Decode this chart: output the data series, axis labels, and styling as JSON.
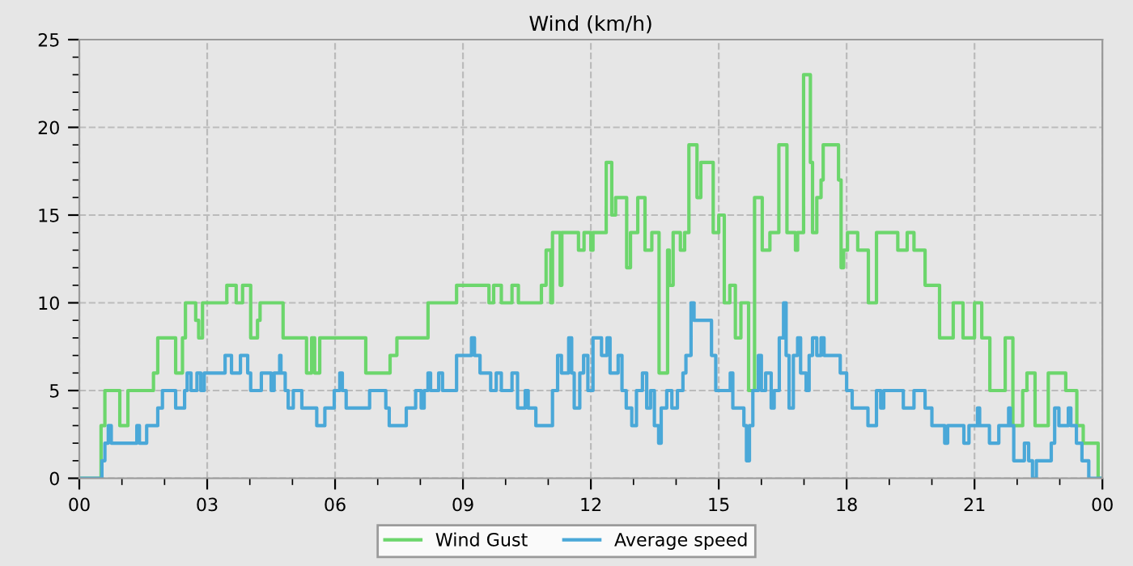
{
  "chart_data": {
    "type": "step",
    "title": "Wind (km/h)",
    "xlim": [
      0,
      24
    ],
    "xticks": [
      {
        "value": 0,
        "label": "00"
      },
      {
        "value": 1,
        "label": null
      },
      {
        "value": 2,
        "label": null
      },
      {
        "value": 3,
        "label": "03"
      },
      {
        "value": 4,
        "label": null
      },
      {
        "value": 5,
        "label": null
      },
      {
        "value": 6,
        "label": "06"
      },
      {
        "value": 7,
        "label": null
      },
      {
        "value": 8,
        "label": null
      },
      {
        "value": 9,
        "label": "09"
      },
      {
        "value": 10,
        "label": null
      },
      {
        "value": 11,
        "label": null
      },
      {
        "value": 12,
        "label": "12"
      },
      {
        "value": 13,
        "label": null
      },
      {
        "value": 14,
        "label": null
      },
      {
        "value": 15,
        "label": "15"
      },
      {
        "value": 16,
        "label": null
      },
      {
        "value": 17,
        "label": null
      },
      {
        "value": 18,
        "label": "18"
      },
      {
        "value": 19,
        "label": null
      },
      {
        "value": 20,
        "label": null
      },
      {
        "value": 21,
        "label": "21"
      },
      {
        "value": 22,
        "label": null
      },
      {
        "value": 23,
        "label": null
      },
      {
        "value": 24,
        "label": "00"
      }
    ],
    "ylim": [
      0,
      25
    ],
    "yticks": [
      0,
      {
        "value": 1,
        "label": null
      },
      {
        "value": 2,
        "label": null
      },
      {
        "value": 3,
        "label": null
      },
      {
        "value": 4,
        "label": null
      },
      5,
      {
        "value": 6,
        "label": null
      },
      {
        "value": 7,
        "label": null
      },
      {
        "value": 8,
        "label": null
      },
      {
        "value": 9,
        "label": null
      },
      10,
      {
        "value": 11,
        "label": null
      },
      {
        "value": 12,
        "label": null
      },
      {
        "value": 13,
        "label": null
      },
      {
        "value": 14,
        "label": null
      },
      15,
      {
        "value": 16,
        "label": null
      },
      {
        "value": 17,
        "label": null
      },
      {
        "value": 18,
        "label": null
      },
      {
        "value": 19,
        "label": null
      },
      20,
      {
        "value": 21,
        "label": null
      },
      {
        "value": 22,
        "label": null
      },
      {
        "value": 23,
        "label": null
      },
      {
        "value": 24,
        "label": null
      },
      25
    ],
    "grid": true,
    "legend": "bottom",
    "line_style": "solid",
    "marker": "none",
    "series": [
      {
        "name": "Wind Gust",
        "color": "#6cd66c",
        "x": [
          0,
          0.51,
          0.6,
          0.95,
          1.14,
          1.74,
          1.84,
          2.26,
          2.42,
          2.49,
          2.73,
          2.8,
          2.89,
          3.46,
          3.68,
          3.83,
          4.02,
          4.18,
          4.24,
          4.78,
          5.33,
          5.45,
          5.52,
          5.64,
          6.72,
          7.29,
          7.45,
          8.18,
          8.85,
          9.61,
          9.72,
          9.9,
          10.15,
          10.3,
          10.84,
          10.95,
          11.06,
          11.1,
          11.28,
          11.32,
          11.71,
          11.84,
          12.0,
          12.05,
          12.36,
          12.49,
          12.58,
          12.84,
          12.93,
          13.1,
          13.27,
          13.43,
          13.6,
          13.8,
          13.84,
          13.93,
          14.1,
          14.2,
          14.3,
          14.49,
          14.58,
          14.87,
          15.0,
          15.13,
          15.26,
          15.39,
          15.52,
          15.7,
          15.84,
          16.02,
          16.2,
          16.41,
          16.6,
          16.8,
          16.85,
          16.99,
          17.15,
          17.2,
          17.3,
          17.4,
          17.45,
          17.81,
          17.87,
          17.93,
          18.02,
          18.26,
          18.51,
          18.7,
          19.2,
          19.42,
          19.58,
          19.84,
          20.18,
          20.5,
          20.73,
          21.0,
          21.17,
          21.36,
          21.72,
          21.9,
          22.13,
          22.23,
          22.42,
          22.73,
          23.14,
          23.4,
          23.55,
          23.9,
          24
        ],
        "values": [
          0,
          3,
          5,
          3,
          5,
          6,
          8,
          6,
          8,
          10,
          9,
          8,
          10,
          11,
          10,
          11,
          8,
          9,
          10,
          8,
          6,
          8,
          6,
          8,
          6,
          7,
          8,
          10,
          11,
          10,
          11,
          10,
          11,
          10,
          11,
          13,
          10,
          14,
          11,
          14,
          13,
          14,
          13,
          14,
          18,
          15,
          16,
          12,
          14,
          16,
          13,
          14,
          6,
          13,
          11,
          14,
          13,
          14,
          19,
          16,
          18,
          14,
          15,
          10,
          11,
          8,
          10,
          5,
          16,
          13,
          14,
          19,
          14,
          13,
          14,
          23,
          18,
          14,
          16,
          17,
          19,
          17,
          12,
          13,
          14,
          13,
          10,
          14,
          13,
          14,
          13,
          11,
          8,
          10,
          8,
          10,
          8,
          5,
          8,
          3,
          5,
          6,
          3,
          6,
          5,
          3,
          2,
          0,
          0
        ]
      },
      {
        "name": "Average speed",
        "color": "#4aa8d8",
        "x": [
          0,
          0.53,
          0.6,
          0.68,
          0.75,
          1.35,
          1.41,
          1.58,
          1.84,
          1.95,
          2.26,
          2.47,
          2.53,
          2.62,
          2.76,
          2.85,
          2.93,
          3.42,
          3.57,
          3.78,
          3.95,
          4.02,
          4.27,
          4.5,
          4.57,
          4.7,
          4.73,
          4.83,
          4.9,
          5.02,
          5.22,
          5.57,
          5.76,
          5.98,
          6.11,
          6.17,
          6.26,
          6.81,
          7.19,
          7.27,
          7.67,
          7.89,
          8.02,
          8.09,
          8.18,
          8.24,
          8.43,
          8.52,
          8.85,
          9.2,
          9.27,
          9.4,
          9.65,
          9.78,
          9.9,
          10.15,
          10.28,
          10.46,
          10.53,
          10.71,
          11.1,
          11.22,
          11.31,
          11.48,
          11.55,
          11.61,
          11.74,
          11.83,
          11.93,
          12.05,
          12.25,
          12.38,
          12.45,
          12.64,
          12.73,
          12.83,
          12.96,
          13.07,
          13.21,
          13.31,
          13.4,
          13.49,
          13.59,
          13.65,
          13.78,
          13.9,
          14.03,
          14.16,
          14.23,
          14.35,
          14.42,
          14.83,
          14.93,
          15.27,
          15.33,
          15.59,
          15.65,
          15.72,
          15.8,
          15.93,
          16.0,
          16.1,
          16.23,
          16.3,
          16.42,
          16.52,
          16.58,
          16.65,
          16.75,
          16.85,
          16.92,
          17.05,
          17.12,
          17.2,
          17.3,
          17.4,
          17.47,
          17.85,
          18.0,
          18.13,
          18.5,
          18.7,
          18.8,
          18.87,
          19.33,
          19.58,
          19.84,
          20.0,
          20.3,
          20.37,
          20.75,
          20.87,
          21.07,
          21.12,
          21.35,
          21.57,
          21.8,
          21.84,
          21.92,
          22.17,
          22.27,
          22.36,
          22.45,
          22.8,
          22.88,
          22.98,
          23.2,
          23.26,
          23.39,
          23.52,
          23.68,
          24
        ],
        "values": [
          0,
          1,
          2,
          3,
          2,
          3,
          2,
          3,
          4,
          5,
          4,
          5,
          6,
          5,
          6,
          5,
          6,
          7,
          6,
          7,
          6,
          5,
          6,
          5,
          6,
          7,
          6,
          5,
          4,
          5,
          4,
          3,
          4,
          5,
          6,
          5,
          4,
          5,
          4,
          3,
          4,
          5,
          4,
          5,
          6,
          5,
          6,
          5,
          7,
          8,
          7,
          6,
          5,
          6,
          5,
          6,
          4,
          5,
          4,
          3,
          5,
          7,
          6,
          8,
          6,
          4,
          6,
          7,
          5,
          8,
          7,
          8,
          6,
          7,
          5,
          4,
          3,
          5,
          6,
          4,
          5,
          3,
          2,
          4,
          5,
          4,
          5,
          6,
          7,
          10,
          9,
          7,
          5,
          6,
          4,
          3,
          1,
          3,
          5,
          7,
          5,
          6,
          4,
          5,
          8,
          10,
          7,
          4,
          7,
          8,
          6,
          5,
          7,
          8,
          7,
          8,
          7,
          6,
          5,
          4,
          3,
          5,
          4,
          5,
          4,
          5,
          4,
          3,
          2,
          3,
          2,
          3,
          4,
          3,
          2,
          3,
          4,
          3,
          1,
          2,
          1,
          0,
          1,
          2,
          4,
          3,
          4,
          3,
          2,
          1,
          0,
          0
        ]
      }
    ]
  }
}
